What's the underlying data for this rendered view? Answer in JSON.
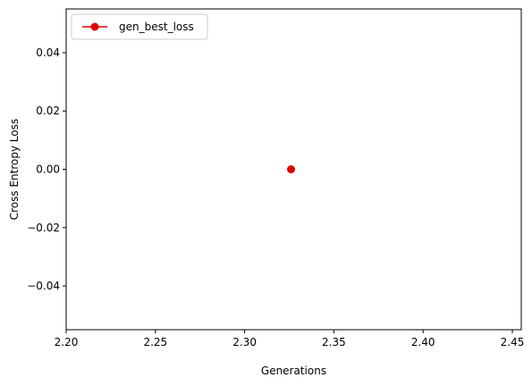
{
  "chart_data": {
    "type": "line",
    "title": "",
    "xlabel": "Generations",
    "ylabel": "Cross Entropy Loss",
    "xlim": [
      2.2,
      2.455
    ],
    "ylim": [
      -0.055,
      0.055
    ],
    "xticks": [
      2.2,
      2.25,
      2.3,
      2.35,
      2.4,
      2.45
    ],
    "xtick_labels": [
      "2.20",
      "2.25",
      "2.30",
      "2.35",
      "2.40",
      "2.45"
    ],
    "yticks": [
      -0.04,
      -0.02,
      0.0,
      0.02,
      0.04
    ],
    "ytick_labels": [
      "−0.04",
      "−0.02",
      "0.00",
      "0.02",
      "0.04"
    ],
    "grid": false,
    "legend": {
      "placement": "top-left"
    },
    "series": [
      {
        "name": "gen_best_loss",
        "color": "#e00000",
        "marker": "circle",
        "x": [
          2.326
        ],
        "y": [
          0.0
        ]
      }
    ]
  }
}
